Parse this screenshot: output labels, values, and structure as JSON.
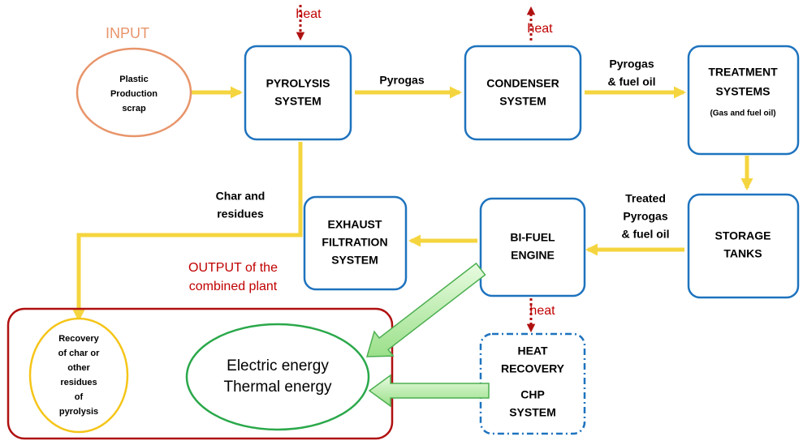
{
  "input_label": "INPUT",
  "output_label": [
    "OUTPUT of the",
    "combined plant"
  ],
  "heat": [
    "heat",
    "heat",
    "heat"
  ],
  "nodes": [
    {
      "id": "input",
      "lines": [
        "Plastic",
        "Production",
        "scrap"
      ]
    },
    {
      "id": "pyrolysis",
      "lines": [
        "PYROLYSIS",
        "SYSTEM"
      ]
    },
    {
      "id": "condenser",
      "lines": [
        "CONDENSER",
        "SYSTEM"
      ]
    },
    {
      "id": "treatment",
      "lines": [
        "TREATMENT",
        "SYSTEMS",
        "(Gas and fuel oil)"
      ]
    },
    {
      "id": "storage",
      "lines": [
        "STORAGE",
        "TANKS"
      ]
    },
    {
      "id": "bifuel",
      "lines": [
        "BI-FUEL",
        "ENGINE"
      ]
    },
    {
      "id": "exhaust",
      "lines": [
        "EXHAUST",
        "FILTRATION",
        "SYSTEM"
      ]
    },
    {
      "id": "heatrecovery",
      "lines": [
        "HEAT",
        "RECOVERY",
        "CHP",
        "SYSTEM"
      ]
    },
    {
      "id": "recovery",
      "lines": [
        "Recovery",
        "of char or",
        "other",
        "residues",
        "of",
        "pyrolysis"
      ]
    },
    {
      "id": "energy",
      "lines": [
        "Electric energy",
        "Thermal energy"
      ]
    }
  ],
  "flows": [
    {
      "lines": [
        "Pyrogas"
      ]
    },
    {
      "lines": [
        "Pyrogas",
        "& fuel oil"
      ]
    },
    {
      "lines": [
        "Treated",
        "Pyrogas",
        "& fuel oil"
      ]
    },
    {
      "lines": [
        "Char and",
        "residues"
      ]
    }
  ]
}
